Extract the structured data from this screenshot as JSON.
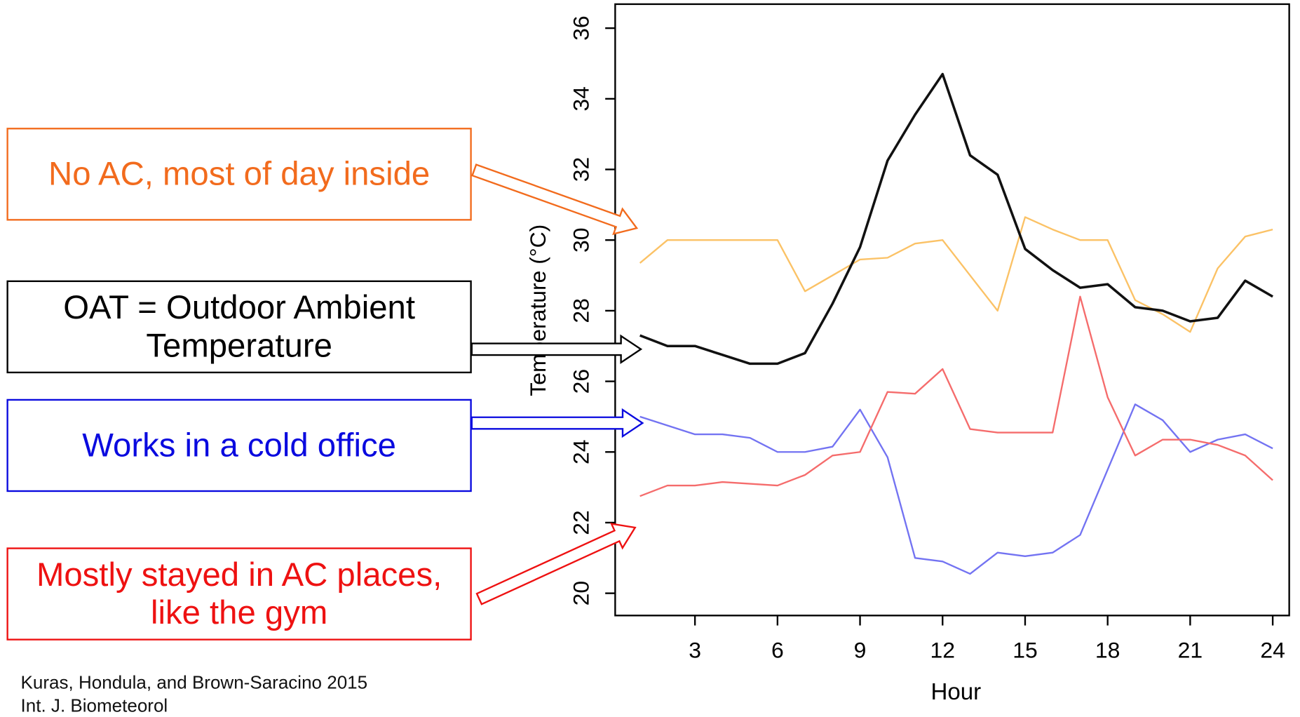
{
  "chart_data": {
    "type": "line",
    "xlabel": "Hour",
    "ylabel": "Temperature (°C)",
    "x": [
      1,
      2,
      3,
      4,
      5,
      6,
      7,
      8,
      9,
      10,
      11,
      12,
      13,
      14,
      15,
      16,
      17,
      18,
      19,
      20,
      21,
      22,
      23,
      24
    ],
    "xlim": [
      0.1,
      24.6
    ],
    "xticks": [
      3,
      6,
      9,
      12,
      15,
      18,
      21,
      24
    ],
    "ylim": [
      19.37,
      36.68
    ],
    "yticks": [
      20,
      22,
      24,
      26,
      28,
      30,
      32,
      34,
      36
    ],
    "series": [
      {
        "name": "No AC, most of day inside",
        "color": "#fbc266",
        "label_color": "#f26b1d",
        "values": [
          29.35,
          30.0,
          30.0,
          30.0,
          30.0,
          30.0,
          28.55,
          29.0,
          29.45,
          29.5,
          29.9,
          30.0,
          29.0,
          28.0,
          30.65,
          30.3,
          30.0,
          30.0,
          28.3,
          27.9,
          27.4,
          29.2,
          30.1,
          30.3
        ]
      },
      {
        "name": "OAT = Outdoor Ambient Temperature",
        "color": "#111111",
        "label_color": "#000000",
        "values": [
          27.3,
          27.0,
          27.0,
          26.75,
          26.5,
          26.5,
          26.8,
          28.2,
          29.8,
          32.25,
          33.55,
          34.7,
          32.4,
          31.85,
          29.75,
          29.15,
          28.65,
          28.75,
          28.1,
          28.0,
          27.7,
          27.8,
          28.85,
          28.4
        ]
      },
      {
        "name": "Works in a cold office",
        "color": "#7373f2",
        "label_color": "#0a0adf",
        "values": [
          25.0,
          24.75,
          24.5,
          24.5,
          24.4,
          24.0,
          24.0,
          24.15,
          25.2,
          23.85,
          21.0,
          20.9,
          20.55,
          21.15,
          21.05,
          21.15,
          21.65,
          23.5,
          25.35,
          24.9,
          24.0,
          24.35,
          24.5,
          24.1
        ]
      },
      {
        "name": "Mostly stayed in AC places, like the gym",
        "color": "#f56c6c",
        "label_color": "#ee1111",
        "values": [
          22.75,
          23.05,
          23.05,
          23.15,
          23.1,
          23.05,
          23.35,
          23.9,
          24.0,
          25.7,
          25.65,
          26.35,
          24.65,
          24.55,
          24.55,
          24.55,
          28.4,
          25.55,
          23.9,
          24.35,
          24.35,
          24.2,
          23.9,
          23.2
        ]
      }
    ],
    "annotations": [
      "Kuras, Hondula, and Brown-Saracino 2015",
      "Int. J. Biometeorol"
    ]
  }
}
